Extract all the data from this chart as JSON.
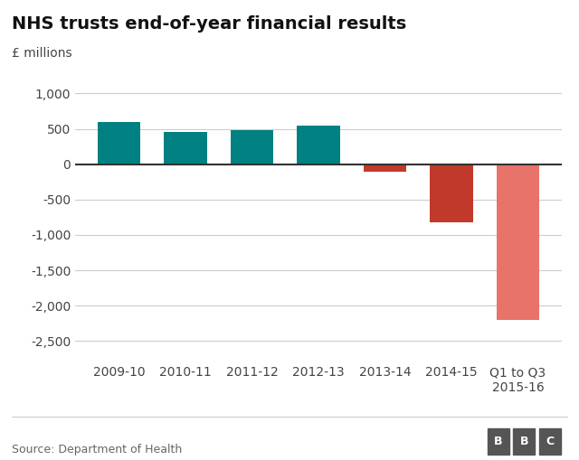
{
  "title": "NHS trusts end-of-year financial results",
  "ylabel": "£ millions",
  "categories": [
    "2009-10",
    "2010-11",
    "2011-12",
    "2012-13",
    "2013-14",
    "2014-15",
    "Q1 to Q3\n2015-16"
  ],
  "values": [
    600,
    450,
    480,
    540,
    -100,
    -820,
    -2200
  ],
  "bar_colors": [
    "#008080",
    "#008080",
    "#008080",
    "#008080",
    "#c0392b",
    "#c0392b",
    "#e8736b"
  ],
  "ylim": [
    -2750,
    1150
  ],
  "yticks": [
    -2500,
    -2000,
    -1500,
    -1000,
    -500,
    0,
    500,
    1000
  ],
  "ytick_labels": [
    "-2,500",
    "-2,000",
    "-1,500",
    "-1,000",
    "-500",
    "0",
    "500",
    "1,000"
  ],
  "source_text": "Source: Department of Health",
  "bbc_text": "BBC",
  "background_color": "#ffffff",
  "grid_color": "#cccccc",
  "title_fontsize": 14,
  "label_fontsize": 10,
  "tick_fontsize": 10,
  "source_fontsize": 9,
  "zero_line_color": "#333333",
  "bar_width": 0.65
}
